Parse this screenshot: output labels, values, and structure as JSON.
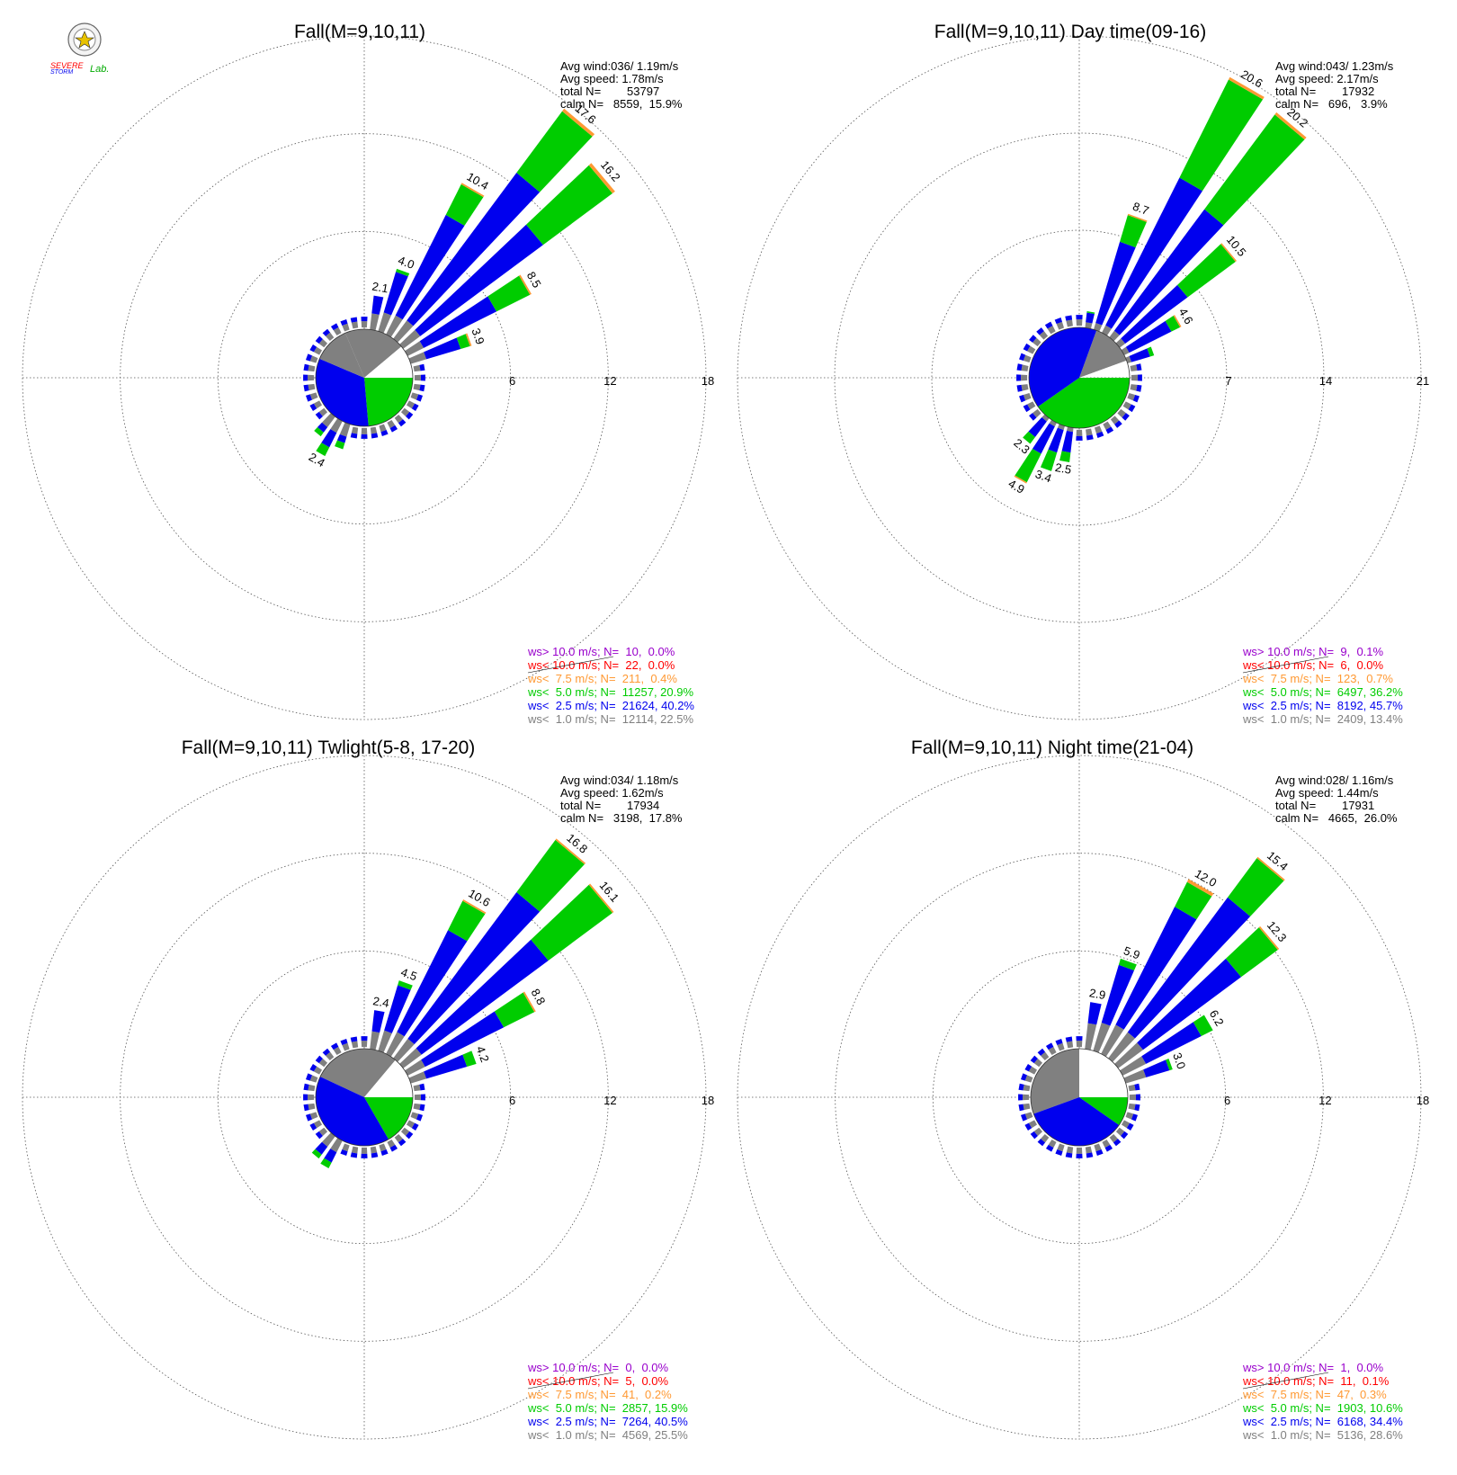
{
  "logo": {
    "text_line1": "SEVERE",
    "text_line2": "STORM",
    "text_lab": "Lab."
  },
  "colors": {
    "gray": "#808080",
    "blue": "#0000ee",
    "green": "#00cc00",
    "orange": "#ff9933",
    "red": "#ff0000",
    "purple": "#9900cc",
    "grid": "#555555"
  },
  "legend_ws": [
    "ws> 10.0 m/s; N=",
    "ws< 10.0 m/s; N=",
    "ws<  7.5 m/s; N=",
    "ws<  5.0 m/s; N=",
    "ws<  2.5 m/s; N=",
    "ws<  1.0 m/s; N="
  ],
  "info_labels": {
    "avg_wind": "Avg wind:",
    "avg_speed": "Avg speed:",
    "total": "total N=",
    "calm": "calm N="
  },
  "chart_data": [
    {
      "type": "windrose",
      "title": "Fall(M=9,10,11)",
      "rings": [
        6,
        12,
        18
      ],
      "avg_wind": "036/ 1.19m/s",
      "avg_speed": "1.78m/s",
      "total_n": "53797",
      "calm": "8559,  15.9%",
      "legend_values": [
        "10,  0.0%",
        "22,  0.0%",
        "211,  0.4%",
        "11257, 20.9%",
        "21624, 40.2%",
        "12114, 22.5%"
      ],
      "inner_pie": [
        {
          "class": "gray",
          "from": 337,
          "to": 50
        },
        {
          "class": "white",
          "from": 50,
          "to": 90
        },
        {
          "class": "green",
          "from": 90,
          "to": 175
        },
        {
          "class": "blue",
          "from": 175,
          "to": 293
        },
        {
          "class": "gray",
          "from": 293,
          "to": 337
        }
      ],
      "petals": [
        {
          "dir": 10,
          "total": 2.1,
          "g": 1.0,
          "b": 2.1,
          "gr": 2.1,
          "o": 2.1,
          "label": "2.1"
        },
        {
          "dir": 20,
          "total": 4.0,
          "g": 1.2,
          "b": 3.8,
          "gr": 4.0,
          "o": 4.0,
          "label": "4.0"
        },
        {
          "dir": 30,
          "total": 10.4,
          "g": 1.3,
          "b": 8.2,
          "gr": 10.3,
          "o": 10.4,
          "label": "10.4"
        },
        {
          "dir": 40,
          "total": 17.6,
          "g": 1.4,
          "b": 12.7,
          "gr": 17.4,
          "o": 17.6,
          "label": "17.6"
        },
        {
          "dir": 50,
          "total": 16.2,
          "g": 1.3,
          "b": 10.7,
          "gr": 16.0,
          "o": 16.2,
          "label": "16.2"
        },
        {
          "dir": 60,
          "total": 8.5,
          "g": 1.1,
          "b": 6.1,
          "gr": 8.4,
          "o": 8.5,
          "label": "8.5"
        },
        {
          "dir": 70,
          "total": 3.9,
          "g": 1.0,
          "b": 3.2,
          "gr": 3.8,
          "o": 3.9,
          "label": "3.9"
        },
        {
          "dir": 200,
          "total": 1.6,
          "g": 0.8,
          "b": 1.2,
          "gr": 1.6,
          "o": 1.6,
          "label": ""
        },
        {
          "dir": 210,
          "total": 2.4,
          "g": 0.8,
          "b": 1.8,
          "gr": 2.4,
          "o": 2.4,
          "label": "2.4"
        },
        {
          "dir": 220,
          "total": 1.5,
          "g": 0.8,
          "b": 1.2,
          "gr": 1.5,
          "o": 1.5,
          "label": ""
        }
      ]
    },
    {
      "type": "windrose",
      "title": "Fall(M=9,10,11) Day time(09-16)",
      "rings": [
        7,
        14,
        21
      ],
      "avg_wind": "043/ 1.23m/s",
      "avg_speed": "2.17m/s",
      "total_n": "17932",
      "calm": "696,   3.9%",
      "legend_values": [
        "9,  0.1%",
        "6,  0.0%",
        "123,  0.7%",
        "6497, 36.2%",
        "8192, 45.7%",
        "2409, 13.4%"
      ],
      "inner_pie": [
        {
          "class": "gray",
          "from": 20,
          "to": 70
        },
        {
          "class": "white",
          "from": 70,
          "to": 88
        },
        {
          "class": "green",
          "from": 90,
          "to": 235
        },
        {
          "class": "blue",
          "from": 235,
          "to": 380
        }
      ],
      "petals": [
        {
          "dir": 10,
          "total": 1.2,
          "g": 0.4,
          "b": 1.1,
          "gr": 1.2,
          "o": 1.2,
          "label": ""
        },
        {
          "dir": 20,
          "total": 8.7,
          "g": 0.5,
          "b": 6.6,
          "gr": 8.6,
          "o": 8.7,
          "label": "8.7"
        },
        {
          "dir": 30,
          "total": 20.6,
          "g": 0.6,
          "b": 12.5,
          "gr": 20.4,
          "o": 20.6,
          "label": "20.6"
        },
        {
          "dir": 40,
          "total": 20.2,
          "g": 0.6,
          "b": 11.5,
          "gr": 20.0,
          "o": 20.2,
          "label": "20.2"
        },
        {
          "dir": 50,
          "total": 10.5,
          "g": 0.5,
          "b": 6.1,
          "gr": 10.4,
          "o": 10.5,
          "label": "10.5"
        },
        {
          "dir": 60,
          "total": 4.6,
          "g": 0.4,
          "b": 3.8,
          "gr": 4.5,
          "o": 4.6,
          "label": "4.6"
        },
        {
          "dir": 70,
          "total": 2.0,
          "g": 0.3,
          "b": 1.7,
          "gr": 2.0,
          "o": 2.0,
          "label": ""
        },
        {
          "dir": 190,
          "total": 2.5,
          "g": 0.3,
          "b": 1.8,
          "gr": 2.5,
          "o": 2.5,
          "label": "2.5"
        },
        {
          "dir": 200,
          "total": 3.4,
          "g": 0.3,
          "b": 2.0,
          "gr": 3.4,
          "o": 3.4,
          "label": "3.4"
        },
        {
          "dir": 210,
          "total": 4.9,
          "g": 0.3,
          "b": 2.5,
          "gr": 4.8,
          "o": 4.9,
          "label": "4.9"
        },
        {
          "dir": 220,
          "total": 2.3,
          "g": 0.3,
          "b": 1.7,
          "gr": 2.3,
          "o": 2.3,
          "label": "2.3"
        }
      ]
    },
    {
      "type": "windrose",
      "title": "Fall(M=9,10,11) Twlight(5-8, 17-20)",
      "rings": [
        6,
        12,
        18
      ],
      "avg_wind": "034/ 1.18m/s",
      "avg_speed": "1.62m/s",
      "total_n": "17934",
      "calm": "3198,  17.8%",
      "legend_values": [
        "0,  0.0%",
        "5,  0.0%",
        "41,  0.2%",
        "2857, 15.9%",
        "7264, 40.5%",
        "4569, 25.5%"
      ],
      "inner_pie": [
        {
          "class": "gray",
          "from": 295,
          "to": 40
        },
        {
          "class": "white",
          "from": 40,
          "to": 90
        },
        {
          "class": "green",
          "from": 90,
          "to": 150
        },
        {
          "class": "blue",
          "from": 150,
          "to": 295
        }
      ],
      "petals": [
        {
          "dir": 10,
          "total": 2.4,
          "g": 1.1,
          "b": 2.4,
          "gr": 2.4,
          "o": 2.4,
          "label": "2.4"
        },
        {
          "dir": 20,
          "total": 4.5,
          "g": 1.3,
          "b": 4.2,
          "gr": 4.5,
          "o": 4.5,
          "label": "4.5"
        },
        {
          "dir": 30,
          "total": 10.6,
          "g": 1.5,
          "b": 8.5,
          "gr": 10.5,
          "o": 10.6,
          "label": "10.6"
        },
        {
          "dir": 40,
          "total": 16.8,
          "g": 1.5,
          "b": 12.7,
          "gr": 16.7,
          "o": 16.8,
          "label": "16.8"
        },
        {
          "dir": 50,
          "total": 16.1,
          "g": 1.4,
          "b": 11.1,
          "gr": 16.0,
          "o": 16.1,
          "label": "16.1"
        },
        {
          "dir": 60,
          "total": 8.8,
          "g": 1.2,
          "b": 6.6,
          "gr": 8.7,
          "o": 8.8,
          "label": "8.8"
        },
        {
          "dir": 70,
          "total": 4.2,
          "g": 1.0,
          "b": 3.6,
          "gr": 4.2,
          "o": 4.2,
          "label": "4.2"
        },
        {
          "dir": 210,
          "total": 1.9,
          "g": 0.8,
          "b": 1.5,
          "gr": 1.9,
          "o": 1.9,
          "label": ""
        },
        {
          "dir": 220,
          "total": 1.7,
          "g": 0.8,
          "b": 1.4,
          "gr": 1.7,
          "o": 1.7,
          "label": ""
        }
      ]
    },
    {
      "type": "windrose",
      "title": "Fall(M=9,10,11) Night time(21-04)",
      "rings": [
        6,
        12,
        18
      ],
      "avg_wind": "028/ 1.16m/s",
      "avg_speed": "1.44m/s",
      "total_n": "17931",
      "calm": "4665,  26.0%",
      "legend_values": [
        "1,  0.0%",
        "11,  0.1%",
        "47,  0.3%",
        "1903, 10.6%",
        "6168, 34.4%",
        "5136, 28.6%"
      ],
      "inner_pie": [
        {
          "class": "gray",
          "from": 250,
          "to": 360
        },
        {
          "class": "white",
          "from": 0,
          "to": 90
        },
        {
          "class": "green",
          "from": 90,
          "to": 125
        },
        {
          "class": "blue",
          "from": 125,
          "to": 250
        }
      ],
      "petals": [
        {
          "dir": 10,
          "total": 2.9,
          "g": 1.6,
          "b": 2.9,
          "gr": 2.9,
          "o": 2.9,
          "label": "2.9"
        },
        {
          "dir": 20,
          "total": 5.9,
          "g": 1.8,
          "b": 5.5,
          "gr": 5.9,
          "o": 5.9,
          "label": "5.9"
        },
        {
          "dir": 30,
          "total": 12.0,
          "g": 2.0,
          "b": 10.1,
          "gr": 11.8,
          "o": 12.0,
          "label": "12.0"
        },
        {
          "dir": 40,
          "total": 15.4,
          "g": 2.0,
          "b": 12.3,
          "gr": 15.3,
          "o": 15.4,
          "label": "15.4"
        },
        {
          "dir": 50,
          "total": 12.3,
          "g": 1.9,
          "b": 9.4,
          "gr": 12.2,
          "o": 12.3,
          "label": "12.3"
        },
        {
          "dir": 60,
          "total": 6.2,
          "g": 1.6,
          "b": 5.4,
          "gr": 6.2,
          "o": 6.2,
          "label": "6.2"
        },
        {
          "dir": 70,
          "total": 3.0,
          "g": 1.3,
          "b": 2.8,
          "gr": 3.0,
          "o": 3.0,
          "label": "3.0"
        }
      ]
    }
  ]
}
